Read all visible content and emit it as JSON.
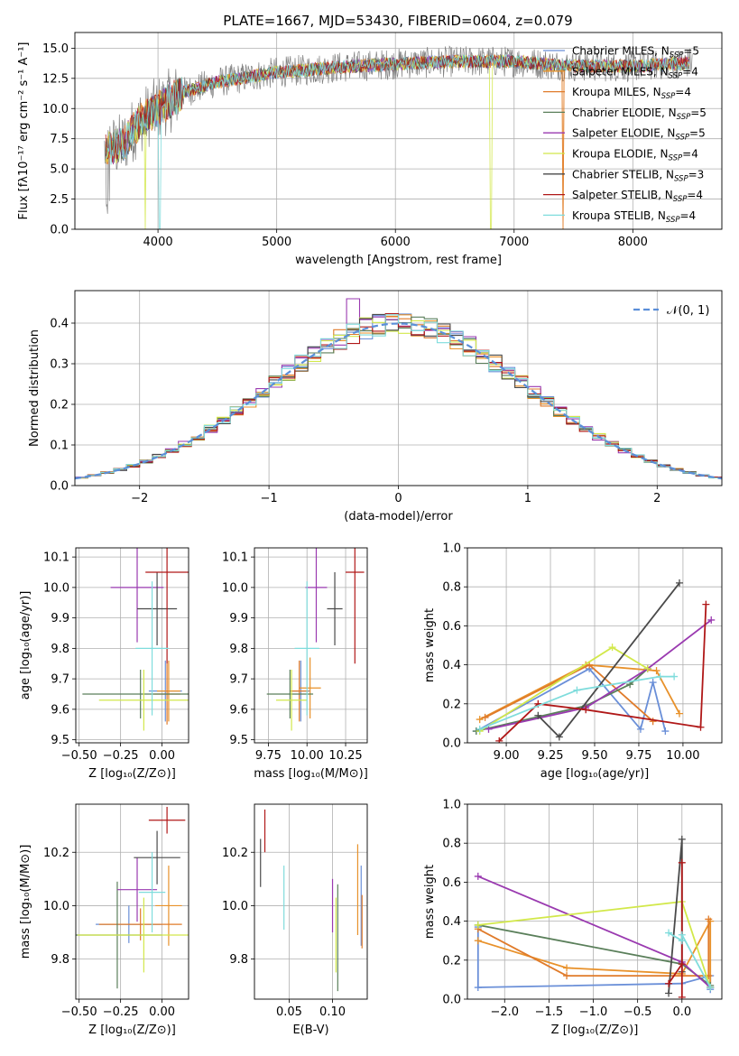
{
  "figure_title": "PLATE=1667, MJD=53430, FIBERID=0604, z=0.079",
  "colors": {
    "chabrier_miles": "#6a8fd8",
    "salpeter_miles": "#e8912a",
    "kroupa_miles": "#e07b2a",
    "chabrier_elodie": "#5a7f5a",
    "salpeter_elodie": "#9a3ab0",
    "kroupa_elodie": "#d2e84a",
    "chabrier_stelib": "#4a4a4a",
    "salpeter_stelib": "#b01818",
    "kroupa_stelib": "#7fdcdc",
    "model_normal": "#5b8fd9",
    "grid": "#b0b0b0"
  },
  "legend_labels": [
    {
      "text": "Chabrier MILES, N",
      "sub": "SSP",
      "tail": "=5",
      "color": "#6a8fd8"
    },
    {
      "text": "Salpeter MILES, N",
      "sub": "SSP",
      "tail": "=4",
      "color": "#e8912a"
    },
    {
      "text": "Kroupa MILES, N",
      "sub": "SSP",
      "tail": "=4",
      "color": "#e07b2a"
    },
    {
      "text": "Chabrier ELODIE, N",
      "sub": "SSP",
      "tail": "=5",
      "color": "#5a7f5a"
    },
    {
      "text": "Salpeter ELODIE, N",
      "sub": "SSP",
      "tail": "=5",
      "color": "#9a3ab0"
    },
    {
      "text": "Kroupa ELODIE, N",
      "sub": "SSP",
      "tail": "=4",
      "color": "#d2e84a"
    },
    {
      "text": "Chabrier STELIB, N",
      "sub": "SSP",
      "tail": "=3",
      "color": "#4a4a4a"
    },
    {
      "text": "Salpeter STELIB, N",
      "sub": "SSP",
      "tail": "=4",
      "color": "#b01818"
    },
    {
      "text": "Kroupa STELIB, N",
      "sub": "SSP",
      "tail": "=4",
      "color": "#7fdcdc"
    }
  ],
  "chart_data": [
    {
      "id": "spectrum",
      "type": "line",
      "title": "PLATE=1667, MJD=53430, FIBERID=0604, z=0.079",
      "xlabel": "wavelength [Angstrom, rest frame]",
      "ylabel": "Flux [fλ10⁻¹⁷ erg cm⁻² s⁻¹ A⁻¹]",
      "xlim": [
        3300,
        8750
      ],
      "ylim": [
        0,
        16.3
      ],
      "xticks": [
        4000,
        5000,
        6000,
        7000,
        8000
      ],
      "yticks": [
        0.0,
        2.5,
        5.0,
        7.5,
        10.0,
        12.5,
        15.0
      ],
      "xtick_labels": [
        "4000",
        "5000",
        "6000",
        "7000",
        "8000"
      ],
      "ytick_labels": [
        "0.0",
        "2.5",
        "5.0",
        "7.5",
        "10.0",
        "12.5",
        "15.0"
      ],
      "continuum": [
        [
          3550,
          6.5
        ],
        [
          3700,
          7.0
        ],
        [
          3850,
          9.0
        ],
        [
          4000,
          10.0
        ],
        [
          4200,
          11.3
        ],
        [
          4500,
          12.2
        ],
        [
          5000,
          13.0
        ],
        [
          5500,
          13.4
        ],
        [
          6000,
          13.7
        ],
        [
          6500,
          13.9
        ],
        [
          7000,
          13.9
        ],
        [
          7500,
          13.5
        ],
        [
          8000,
          13.5
        ],
        [
          8500,
          13.8
        ]
      ],
      "legend": "top-right"
    },
    {
      "id": "residuals",
      "type": "line",
      "xlabel": "(data-model)/error",
      "ylabel": "Normed distribution",
      "xlim": [
        -2.5,
        2.5
      ],
      "ylim": [
        0,
        0.48
      ],
      "xticks": [
        -2,
        -1,
        0,
        1,
        2
      ],
      "yticks": [
        0.0,
        0.1,
        0.2,
        0.3,
        0.4
      ],
      "xtick_labels": [
        "−2",
        "−1",
        "0",
        "1",
        "2"
      ],
      "ytick_labels": [
        "0.0",
        "0.1",
        "0.2",
        "0.3",
        "0.4"
      ],
      "legend_label": "𝒩(0, 1)",
      "legend": "top-right",
      "peaks": [
        0.46,
        0.42,
        0.4,
        0.41,
        0.42,
        0.41,
        0.44,
        0.41,
        0.43
      ]
    },
    {
      "id": "age_vs_Z",
      "type": "scatter",
      "xlabel": "Z [log₁₀(Z/Z⊙)]",
      "ylabel": "age  [log₁₀(age/yr)]",
      "xlim": [
        -0.52,
        0.16
      ],
      "ylim": [
        9.49,
        10.13
      ],
      "xticks": [
        -0.5,
        -0.25,
        0.0
      ],
      "yticks": [
        9.5,
        9.6,
        9.7,
        9.8,
        9.9,
        10.0,
        10.1
      ],
      "xtick_labels": [
        "−0.50",
        "−0.25",
        "0.00"
      ],
      "ytick_labels": [
        "9.5",
        "9.6",
        "9.7",
        "9.8",
        "9.9",
        "10.0",
        "10.1"
      ],
      "points": [
        {
          "x": 0.02,
          "y": 9.66,
          "xerr": 0.1,
          "yerr": 0.1
        },
        {
          "x": 0.04,
          "y": 9.66,
          "xerr": 0.07,
          "yerr": 0.1
        },
        {
          "x": 0.03,
          "y": 9.65,
          "xerr": 0.08,
          "yerr": 0.1
        },
        {
          "x": -0.13,
          "y": 9.65,
          "xerr": 0.35,
          "yerr": 0.08
        },
        {
          "x": -0.15,
          "y": 10.0,
          "xerr": 0.16,
          "yerr": 0.18
        },
        {
          "x": -0.11,
          "y": 9.63,
          "xerr": 0.27,
          "yerr": 0.1
        },
        {
          "x": -0.03,
          "y": 9.93,
          "xerr": 0.12,
          "yerr": 0.12
        },
        {
          "x": 0.03,
          "y": 10.05,
          "xerr": 0.13,
          "yerr": 0.3
        },
        {
          "x": -0.06,
          "y": 9.8,
          "xerr": 0.1,
          "yerr": 0.22
        }
      ]
    },
    {
      "id": "age_vs_mass",
      "type": "scatter",
      "xlabel": "mass [log₁₀(M/M⊙)]",
      "xlim": [
        9.66,
        10.39
      ],
      "ylim": [
        9.49,
        10.13
      ],
      "xticks": [
        9.75,
        10.0,
        10.25
      ],
      "yticks": [
        9.5,
        9.6,
        9.7,
        9.8,
        9.9,
        10.0,
        10.1
      ],
      "xtick_labels": [
        "9.75",
        "10.00",
        "10.25"
      ],
      "ytick_labels": [
        "9.5",
        "9.6",
        "9.7",
        "9.8",
        "9.9",
        "10.0",
        "10.1"
      ],
      "points": [
        {
          "x": 9.96,
          "y": 9.66,
          "xerr": 0.06,
          "yerr": 0.1
        },
        {
          "x": 10.02,
          "y": 9.67,
          "xerr": 0.07,
          "yerr": 0.1
        },
        {
          "x": 9.95,
          "y": 9.66,
          "xerr": 0.06,
          "yerr": 0.1
        },
        {
          "x": 9.89,
          "y": 9.65,
          "xerr": 0.15,
          "yerr": 0.08
        },
        {
          "x": 10.06,
          "y": 10.0,
          "xerr": 0.07,
          "yerr": 0.18
        },
        {
          "x": 9.9,
          "y": 9.63,
          "xerr": 0.1,
          "yerr": 0.1
        },
        {
          "x": 10.18,
          "y": 9.93,
          "xerr": 0.05,
          "yerr": 0.12
        },
        {
          "x": 10.31,
          "y": 10.05,
          "xerr": 0.06,
          "yerr": 0.3
        },
        {
          "x": 10.0,
          "y": 9.8,
          "xerr": 0.08,
          "yerr": 0.22
        }
      ]
    },
    {
      "id": "massweight_vs_age",
      "type": "line",
      "xlabel": "age  [log₁₀(age/yr)]",
      "ylabel": "mass weight",
      "xlim": [
        8.78,
        10.22
      ],
      "ylim": [
        0,
        1
      ],
      "xticks": [
        9.0,
        9.25,
        9.5,
        9.75,
        10.0
      ],
      "yticks": [
        0.0,
        0.2,
        0.4,
        0.6,
        0.8,
        1.0
      ],
      "xtick_labels": [
        "9.00",
        "9.25",
        "9.50",
        "9.75",
        "10.00"
      ],
      "ytick_labels": [
        "0.0",
        "0.2",
        "0.4",
        "0.6",
        "0.8",
        "1.0"
      ],
      "series": [
        {
          "points": [
            [
              8.83,
              0.06
            ],
            [
              9.47,
              0.38
            ],
            [
              9.76,
              0.07
            ],
            [
              9.83,
              0.31
            ],
            [
              9.9,
              0.06
            ]
          ]
        },
        {
          "points": [
            [
              8.85,
              0.12
            ],
            [
              9.45,
              0.4
            ],
            [
              9.85,
              0.37
            ],
            [
              9.98,
              0.15
            ]
          ]
        },
        {
          "points": [
            [
              8.88,
              0.13
            ],
            [
              9.47,
              0.4
            ],
            [
              9.83,
              0.11
            ]
          ]
        },
        {
          "points": [
            [
              8.83,
              0.06
            ],
            [
              9.45,
              0.19
            ],
            [
              9.7,
              0.3
            ],
            [
              9.8,
              0.38
            ]
          ]
        },
        {
          "points": [
            [
              8.9,
              0.07
            ],
            [
              9.45,
              0.18
            ],
            [
              9.8,
              0.38
            ],
            [
              10.16,
              0.63
            ]
          ]
        },
        {
          "points": [
            [
              8.85,
              0.06
            ],
            [
              9.6,
              0.49
            ],
            [
              9.8,
              0.38
            ]
          ]
        },
        {
          "points": [
            [
              9.18,
              0.14
            ],
            [
              9.3,
              0.03
            ],
            [
              9.98,
              0.82
            ]
          ]
        },
        {
          "points": [
            [
              8.96,
              0.01
            ],
            [
              9.18,
              0.2
            ],
            [
              9.45,
              0.17
            ],
            [
              10.1,
              0.08
            ],
            [
              10.13,
              0.71
            ]
          ]
        },
        {
          "points": [
            [
              8.85,
              0.07
            ],
            [
              9.4,
              0.27
            ],
            [
              9.87,
              0.34
            ],
            [
              9.95,
              0.34
            ]
          ]
        }
      ]
    },
    {
      "id": "mass_vs_Z",
      "type": "scatter",
      "xlabel": "Z [log₁₀(Z/Z⊙)]",
      "ylabel": "mass [log₁₀(M/M⊙)]",
      "xlim": [
        -0.52,
        0.16
      ],
      "ylim": [
        9.65,
        10.38
      ],
      "xticks": [
        -0.5,
        -0.25,
        0.0
      ],
      "yticks": [
        9.8,
        10.0,
        10.2
      ],
      "xtick_labels": [
        "−0.50",
        "−0.25",
        "0.00"
      ],
      "ytick_labels": [
        "9.8",
        "10.0",
        "10.2"
      ],
      "points": [
        {
          "x": -0.2,
          "y": 9.93,
          "xerr": 0.2,
          "yerr": 0.07
        },
        {
          "x": 0.04,
          "y": 10.0,
          "xerr": 0.08,
          "yerr": 0.15
        },
        {
          "x": -0.13,
          "y": 9.93,
          "xerr": 0.25,
          "yerr": 0.06
        },
        {
          "x": -0.27,
          "y": 9.89,
          "xerr": 0.27,
          "yerr": 0.2
        },
        {
          "x": -0.15,
          "y": 10.06,
          "xerr": 0.12,
          "yerr": 0.12
        },
        {
          "x": -0.11,
          "y": 9.89,
          "xerr": 0.4,
          "yerr": 0.14
        },
        {
          "x": -0.03,
          "y": 10.18,
          "xerr": 0.14,
          "yerr": 0.1
        },
        {
          "x": 0.03,
          "y": 10.32,
          "xerr": 0.11,
          "yerr": 0.05
        },
        {
          "x": -0.06,
          "y": 10.05,
          "xerr": 0.08,
          "yerr": 0.15
        }
      ]
    },
    {
      "id": "mass_vs_ebv",
      "type": "scatter",
      "xlabel": "E(B-V)",
      "xlim": [
        0.01,
        0.14
      ],
      "ylim": [
        9.65,
        10.38
      ],
      "xticks": [
        0.05,
        0.1
      ],
      "yticks": [
        9.8,
        10.0,
        10.2
      ],
      "xtick_labels": [
        "0.05",
        "0.10"
      ],
      "ytick_labels": [
        "9.8",
        "10.0",
        "10.2"
      ],
      "points": [
        {
          "x": 0.133,
          "y": 10.0,
          "yerr": 0.15
        },
        {
          "x": 0.129,
          "y": 10.06,
          "yerr": 0.17
        },
        {
          "x": 0.134,
          "y": 9.94,
          "yerr": 0.1
        },
        {
          "x": 0.106,
          "y": 9.88,
          "yerr": 0.2
        },
        {
          "x": 0.1,
          "y": 10.0,
          "yerr": 0.1
        },
        {
          "x": 0.104,
          "y": 9.89,
          "yerr": 0.14
        },
        {
          "x": 0.017,
          "y": 10.16,
          "yerr": 0.09
        },
        {
          "x": 0.022,
          "y": 10.28,
          "yerr": 0.08
        },
        {
          "x": 0.044,
          "y": 10.03,
          "yerr": 0.12
        }
      ]
    },
    {
      "id": "massweight_vs_Z",
      "type": "line",
      "xlabel": "Z [log₁₀(Z/Z⊙)]",
      "ylabel": "mass weight",
      "xlim": [
        -2.42,
        0.45
      ],
      "ylim": [
        0,
        1
      ],
      "xticks": [
        -2.0,
        -1.5,
        -1.0,
        -0.5,
        0.0
      ],
      "yticks": [
        0.0,
        0.2,
        0.4,
        0.6,
        0.8,
        1.0
      ],
      "xtick_labels": [
        "−2.0",
        "−1.5",
        "−1.0",
        "−0.5",
        "0.0"
      ],
      "ytick_labels": [
        "0.0",
        "0.2",
        "0.4",
        "0.6",
        "0.8",
        "1.0"
      ],
      "series": [
        {
          "points": [
            [
              -2.3,
              0.37
            ],
            [
              -2.3,
              0.06
            ],
            [
              0.0,
              0.08
            ],
            [
              0.32,
              0.12
            ],
            [
              0.32,
              0.05
            ]
          ]
        },
        {
          "points": [
            [
              -2.3,
              0.3
            ],
            [
              -1.3,
              0.16
            ],
            [
              0.0,
              0.13
            ],
            [
              0.32,
              0.4
            ],
            [
              0.32,
              0.06
            ]
          ]
        },
        {
          "points": [
            [
              -2.3,
              0.36
            ],
            [
              -1.3,
              0.12
            ],
            [
              0.0,
              0.12
            ],
            [
              0.3,
              0.12
            ],
            [
              0.3,
              0.41
            ]
          ]
        },
        {
          "points": [
            [
              -2.3,
              0.38
            ],
            [
              0.0,
              0.18
            ],
            [
              0.32,
              0.07
            ]
          ]
        },
        {
          "points": [
            [
              -2.3,
              0.63
            ],
            [
              0.0,
              0.19
            ],
            [
              0.32,
              0.06
            ]
          ]
        },
        {
          "points": [
            [
              -2.3,
              0.38
            ],
            [
              0.0,
              0.5
            ],
            [
              0.32,
              0.06
            ]
          ]
        },
        {
          "points": [
            [
              -0.15,
              0.03
            ],
            [
              0.0,
              0.82
            ],
            [
              0.0,
              0.14
            ]
          ]
        },
        {
          "points": [
            [
              -0.15,
              0.08
            ],
            [
              0.0,
              0.18
            ],
            [
              0.0,
              0.7
            ],
            [
              0.0,
              0.01
            ]
          ]
        },
        {
          "points": [
            [
              -0.15,
              0.34
            ],
            [
              0.0,
              0.3
            ],
            [
              0.0,
              0.33
            ],
            [
              0.32,
              0.06
            ]
          ]
        }
      ]
    }
  ]
}
